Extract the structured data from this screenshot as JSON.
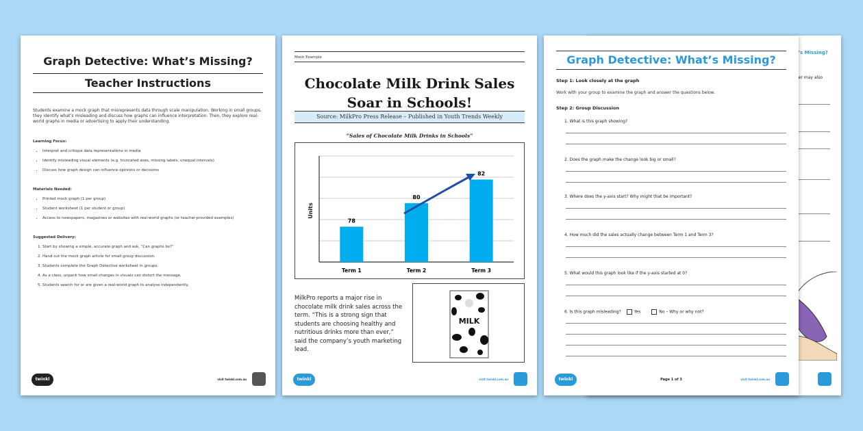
{
  "colors": {
    "background": "#abd8f5",
    "accent_blue": "#2b9ad8",
    "bar_blue": "#00aeef",
    "arrow_blue": "#1f4fa8"
  },
  "page1": {
    "title": "Graph Detective: What’s Missing?",
    "subtitle": "Teacher Instructions",
    "intro": "Students examine a mock graph that misrepresents data through scale manipulation. Working in small groups, they identify what’s misleading and discuss how graphs can influence interpretation. Then, they explore real-world graphs in media or advertising to apply their understanding.",
    "learning_focus_heading": "Learning Focus:",
    "learning_focus": [
      "Interpret and critique data representations in media",
      "Identify misleading visual elements (e.g. truncated axes, missing labels, unequal intervals)",
      "Discuss how graph design can influence opinions or decisions"
    ],
    "materials_heading": "Materials Needed:",
    "materials": [
      "Printed mock graph (1 per group)",
      "Student worksheet (1 per student or group)",
      "Access to newspapers, magazines or websites with real-world graphs (or teacher-provided examples)"
    ],
    "delivery_heading": "Suggested Delivery:",
    "delivery": [
      "Start by showing a simple, accurate graph and ask, “Can graphs lie?”",
      "Hand out the mock graph article for small group discussion.",
      "Students complete the Graph Detective worksheet in groups.",
      "As a class, unpack how small changes in visuals can distort the message.",
      "Students search for or are given a real-world graph to analyse independently."
    ],
    "footer_visit": "visit twinkl.com.au"
  },
  "page2": {
    "mock_label": "Mock Example",
    "headline_line1": "Chocolate Milk Drink Sales",
    "headline_line2": "Soar in Schools!",
    "source": "Source: MilkPro Press Release – Published in Youth Trends Weekly",
    "article": "MilkPro reports a major rise in chocolate milk drink sales across the term. “This is a strong sign that students are choosing healthy and nutritious drinks more than ever,” said the company’s youth marketing lead.",
    "carton_label": "MILK",
    "footer_visit": "visit twinkl.com.au"
  },
  "chart_data": {
    "type": "bar",
    "title": "“Sales of Chocolate Milk Drinks in Schools”",
    "ylabel": "Units",
    "xlabel": "",
    "categories": [
      "Term 1",
      "Term 2",
      "Term 3"
    ],
    "values": [
      78,
      80,
      82
    ],
    "ylim": [
      75,
      84
    ],
    "grid": true,
    "data_labels": [
      "78",
      "80",
      "82"
    ]
  },
  "page3": {
    "title": "Graph Detective: What’s Missing?",
    "step1": "Step 1: Look closely at the graph",
    "step1_body": "Work with your group to examine the graph and answer the questions below.",
    "step2": "Step 2: Group Discussion",
    "questions": [
      "1.  What is this graph showing?",
      "2.  Does the graph make the change look big or small?",
      "3.  Where does the y-axis start? Why might that be important?",
      "4.  How much did the sales actually change between Term 1 and Term 3?",
      "5.  What would this graph look like if the y-axis started at 0?",
      "6.  Is this graph misleading?"
    ],
    "yes_label": "Yes",
    "no_label": "No – Why or why not?",
    "page_num": "Page 1 of 3",
    "footer_visit": "visit twinkl.com.au"
  },
  "page4": {
    "frag_title": "t’s Missing?",
    "frag_text": "her may also"
  },
  "footer": {
    "logo_text": "twinkl"
  }
}
